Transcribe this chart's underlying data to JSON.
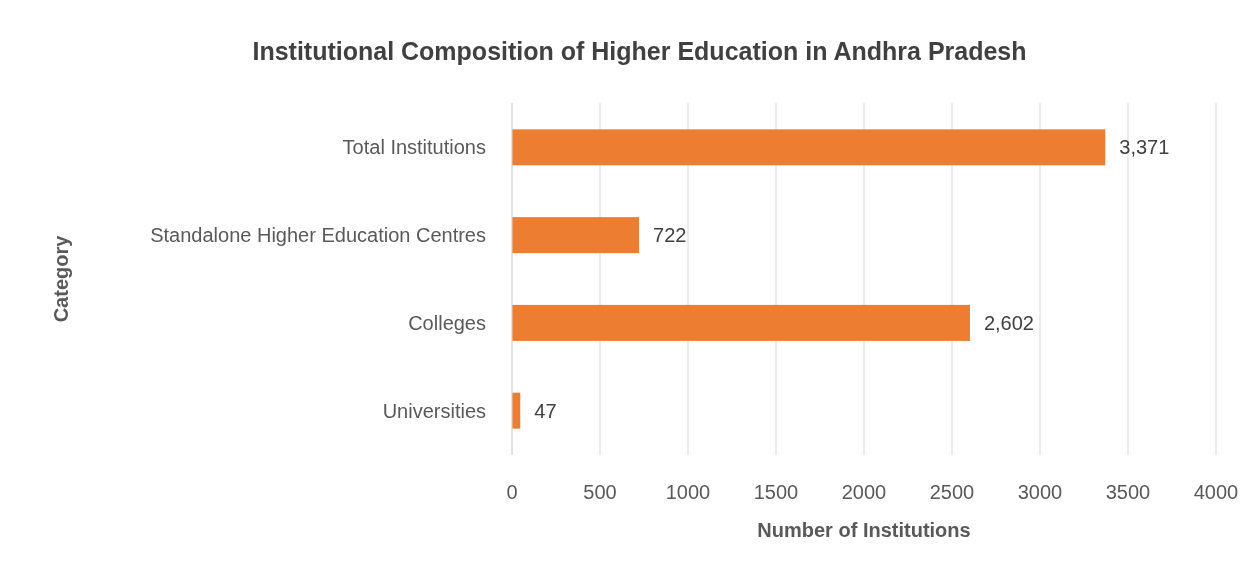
{
  "chart_data": {
    "type": "bar",
    "orientation": "horizontal",
    "title": "Institutional Composition of Higher Education in Andhra Pradesh",
    "xlabel": "Number of Institutions",
    "ylabel": "Category",
    "categories": [
      "Total Institutions",
      "Standalone Higher Education Centres",
      "Colleges",
      "Universities"
    ],
    "values": [
      3371,
      722,
      2602,
      47
    ],
    "value_labels": [
      "3,371",
      "722",
      "2,602",
      "47"
    ],
    "color": "#ed7d31",
    "xlim": [
      0,
      4000
    ],
    "xticks": [
      0,
      500,
      1000,
      1500,
      2000,
      2500,
      3000,
      3500,
      4000
    ],
    "grid": "x"
  }
}
